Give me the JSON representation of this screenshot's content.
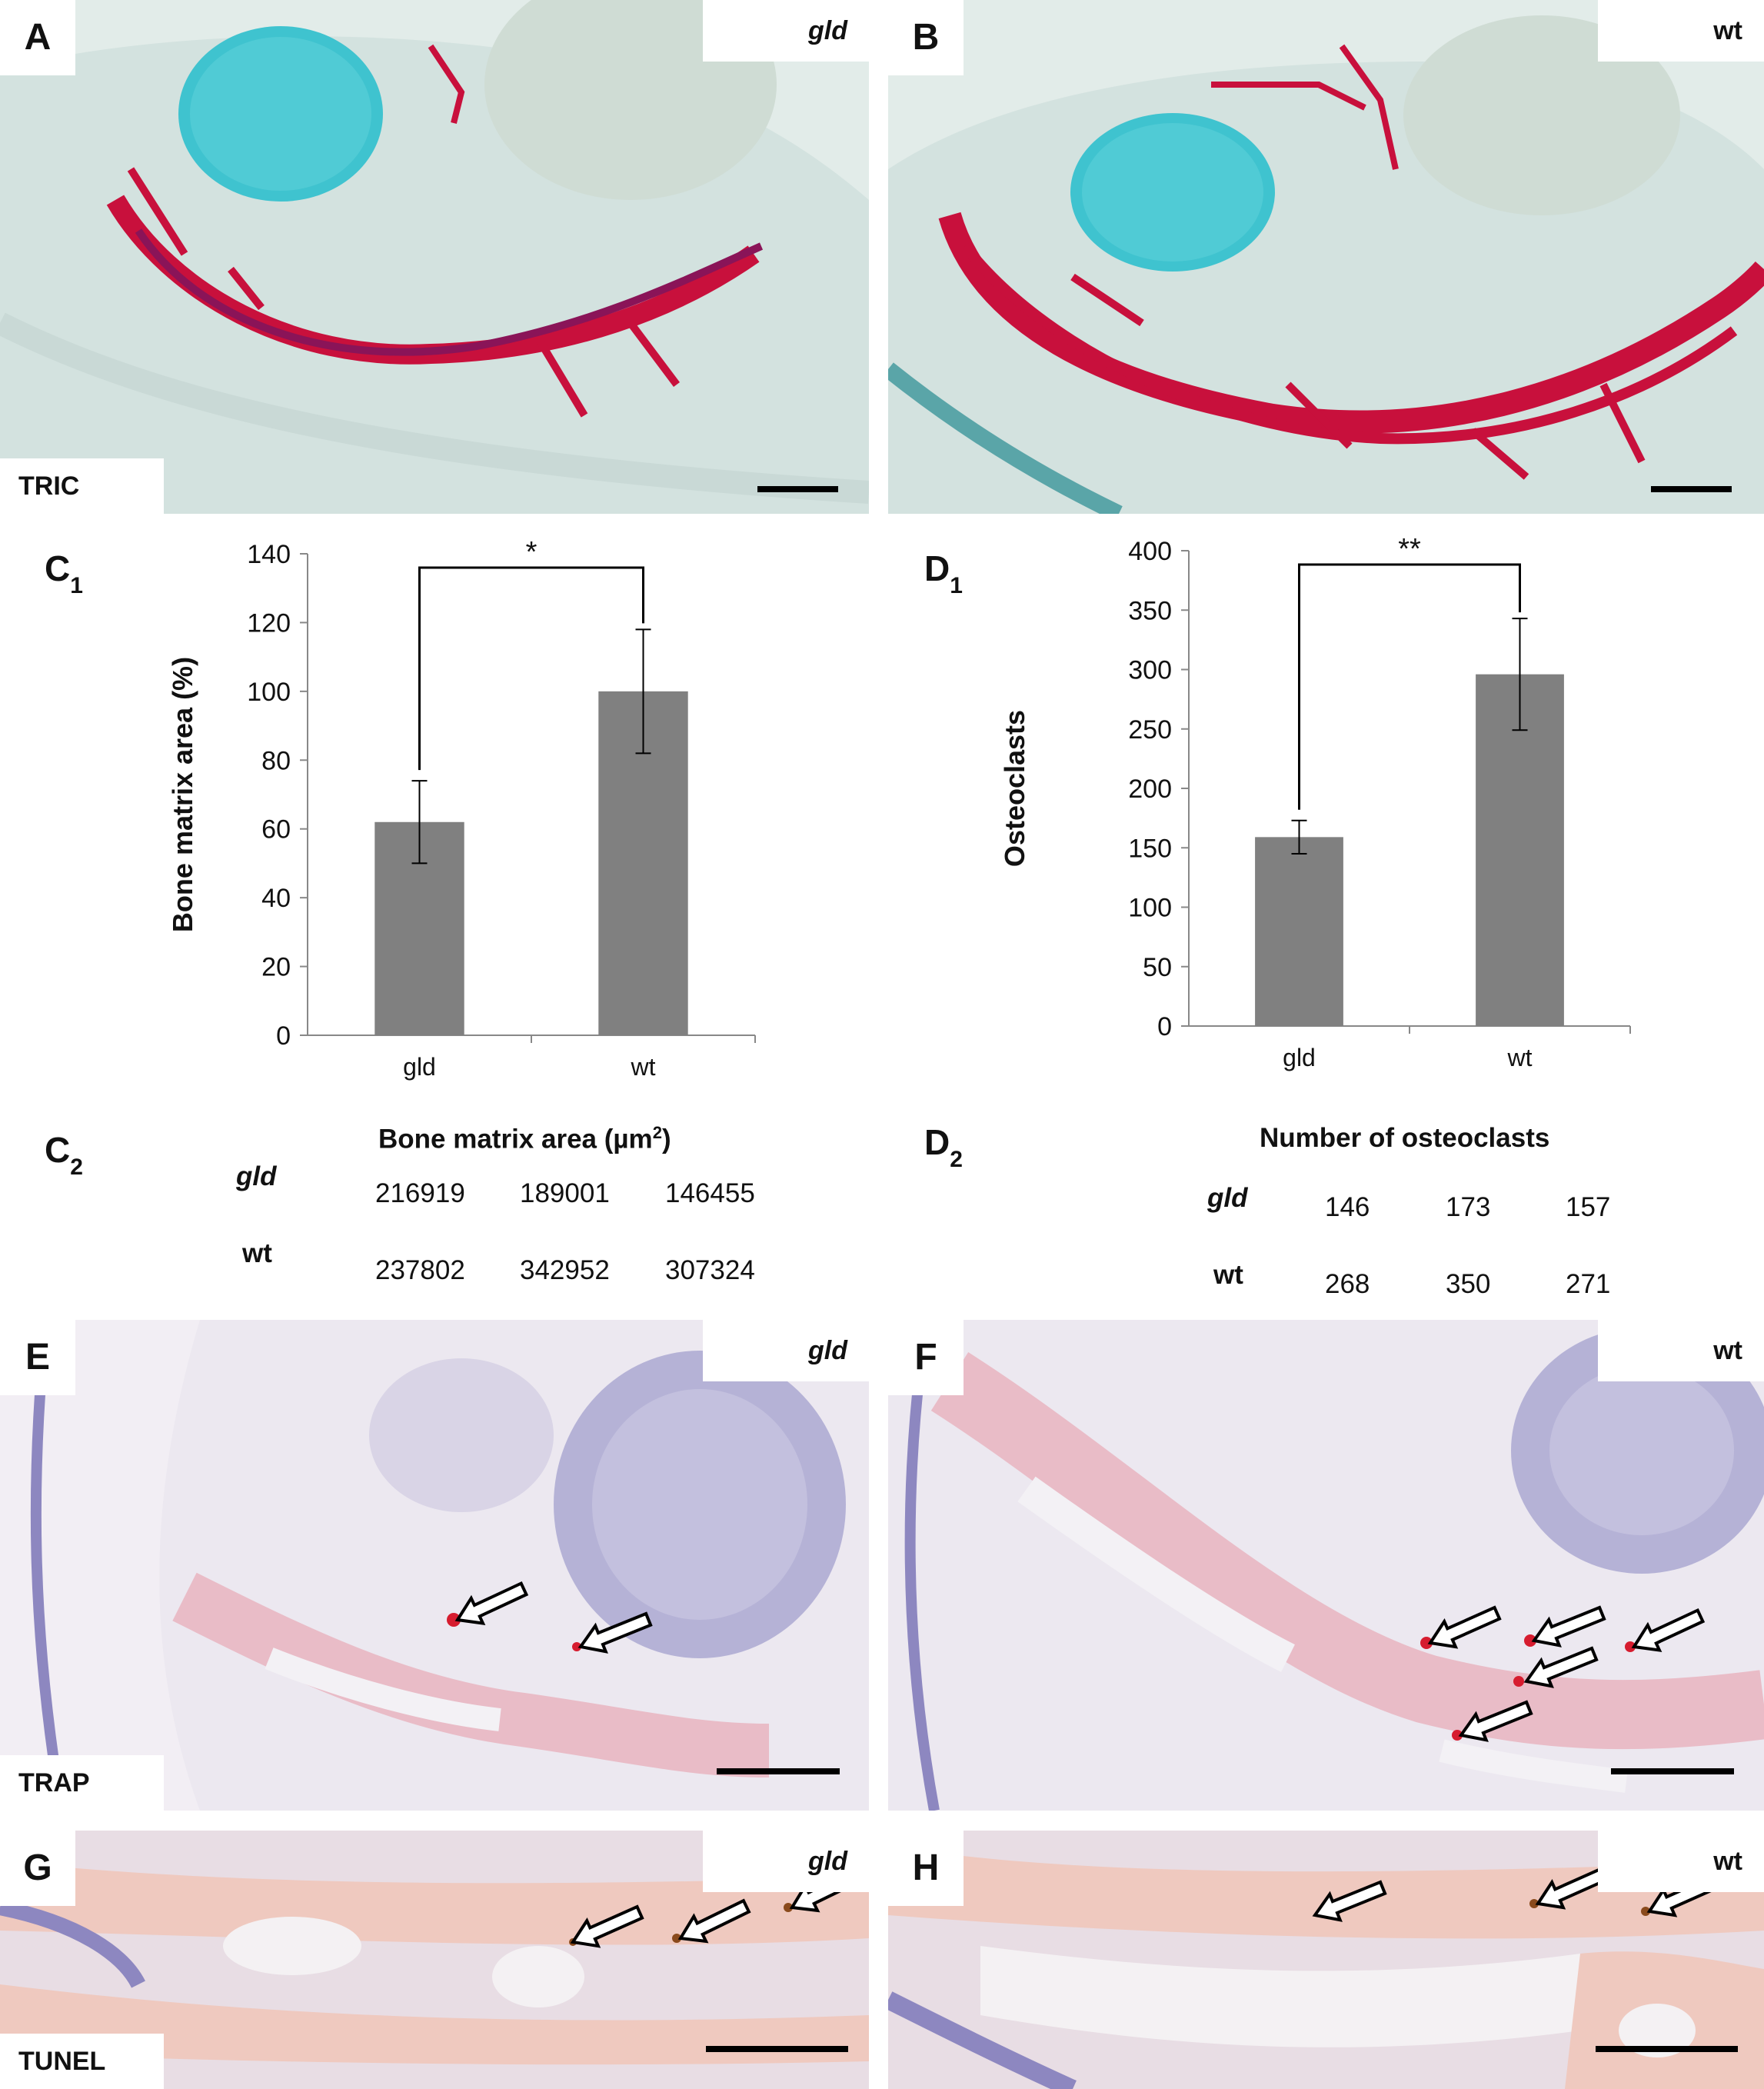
{
  "panels": {
    "A": {
      "letter": "A",
      "tag": "gld",
      "stain": "TRIC"
    },
    "B": {
      "letter": "B",
      "tag": "wt"
    },
    "E": {
      "letter": "E",
      "tag": "gld",
      "stain": "TRAP"
    },
    "F": {
      "letter": "F",
      "tag": "wt"
    },
    "G": {
      "letter": "G",
      "tag": "gld",
      "stain": "TUNEL"
    },
    "H": {
      "letter": "H",
      "tag": "wt"
    }
  },
  "labels": {
    "c1_main": "C",
    "c1_sub": "1",
    "d1_main": "D",
    "d1_sub": "1",
    "c2_main": "C",
    "c2_sub": "2",
    "d2_main": "D",
    "d2_sub": "2"
  },
  "chart_data": [
    {
      "id": "C1",
      "type": "bar",
      "categories": [
        "gld",
        "wt"
      ],
      "values": [
        62,
        100
      ],
      "errors": [
        12,
        18
      ],
      "ylabel": "Bone matrix area (%)",
      "ylim": [
        0,
        140
      ],
      "yticks": [
        0,
        20,
        40,
        60,
        80,
        100,
        120,
        140
      ],
      "significance": "*",
      "bar_color": "#808080"
    },
    {
      "id": "D1",
      "type": "bar",
      "categories": [
        "gld",
        "wt"
      ],
      "values": [
        159,
        296
      ],
      "errors": [
        14,
        47
      ],
      "ylabel": "Osteoclasts",
      "ylim": [
        0,
        400
      ],
      "yticks": [
        0,
        50,
        100,
        150,
        200,
        250,
        300,
        350,
        400
      ],
      "significance": "**",
      "bar_color": "#808080"
    }
  ],
  "tables": {
    "c2": {
      "title_prefix": "Bone matrix area (µm",
      "title_sup": "2",
      "title_suffix": ")",
      "rows": [
        {
          "group": "gld",
          "values": [
            "216919",
            "189001",
            "146455"
          ]
        },
        {
          "group": "wt",
          "values": [
            "237802",
            "342952",
            "307324"
          ]
        }
      ]
    },
    "d2": {
      "title": "Number of osteoclasts",
      "rows": [
        {
          "group": "gld",
          "values": [
            "146",
            "173",
            "157"
          ]
        },
        {
          "group": "wt",
          "values": [
            "268",
            "350",
            "271"
          ]
        }
      ]
    }
  },
  "colors": {
    "trichrome_bone": "#c8103c",
    "cartilage": "#3fc3cf",
    "trap_signal": "#d61c2f",
    "tunel_signal": "#8a4a1c"
  }
}
